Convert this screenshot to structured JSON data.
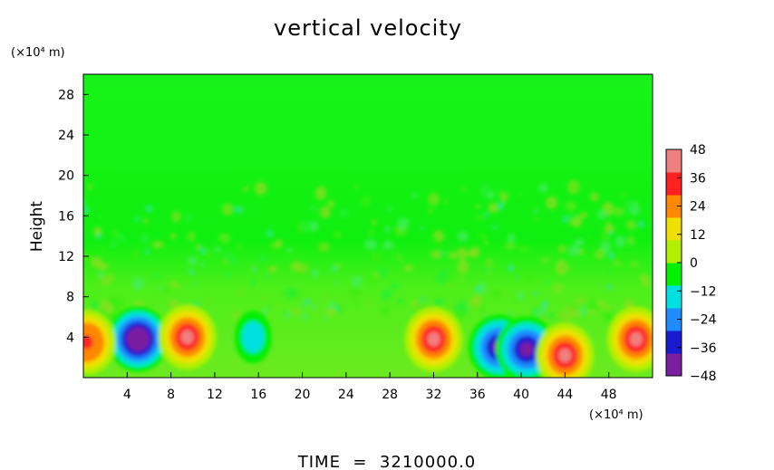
{
  "chart_data": {
    "type": "heatmap",
    "title": "vertical velocity",
    "ylabel": "Height",
    "x_unit_label": "(×10⁴ m)",
    "y_unit_label": "(×10⁴ m)",
    "xlim": [
      0,
      52
    ],
    "ylim": [
      0,
      30
    ],
    "x_ticks": [
      4,
      8,
      12,
      16,
      20,
      24,
      28,
      32,
      36,
      40,
      44,
      48
    ],
    "y_ticks": [
      4,
      8,
      12,
      16,
      20,
      24,
      28
    ],
    "x_tick_labels": [
      "4",
      "8",
      "12",
      "16",
      "20",
      "24",
      "28",
      "32",
      "36",
      "40",
      "44",
      "48"
    ],
    "y_tick_labels": [
      "4",
      "8",
      "12",
      "16",
      "20",
      "24",
      "28"
    ],
    "colorbar": {
      "min": -48,
      "max": 48,
      "ticks": [
        48,
        36,
        24,
        12,
        0,
        -12,
        -24,
        -36,
        -48
      ],
      "tick_labels": [
        "48",
        "36",
        "24",
        "12",
        "0",
        "−12",
        "−24",
        "−36",
        "−48"
      ],
      "colors": [
        "#7a1fa0",
        "#1a1ad0",
        "#1e8cff",
        "#00e0e0",
        "#00f000",
        "#b0f000",
        "#f0e000",
        "#ff8800",
        "#ff2020",
        "#f08080"
      ]
    },
    "features": [
      {
        "x": 5.0,
        "y": 3.8,
        "value": -48,
        "kind": "downdraft"
      },
      {
        "x": 9.5,
        "y": 4.0,
        "value": 44,
        "kind": "updraft"
      },
      {
        "x": 0.3,
        "y": 3.5,
        "value": 36,
        "kind": "updraft"
      },
      {
        "x": 15.5,
        "y": 4.0,
        "value": -18,
        "kind": "downdraft"
      },
      {
        "x": 32.0,
        "y": 3.8,
        "value": 42,
        "kind": "updraft"
      },
      {
        "x": 38.0,
        "y": 3.0,
        "value": -40,
        "kind": "downdraft"
      },
      {
        "x": 40.5,
        "y": 2.8,
        "value": -42,
        "kind": "downdraft"
      },
      {
        "x": 44.0,
        "y": 2.2,
        "value": 40,
        "kind": "updraft"
      },
      {
        "x": 50.5,
        "y": 3.8,
        "value": 40,
        "kind": "updraft"
      }
    ]
  },
  "footer": {
    "time_label": "TIME  =  3210000.0"
  }
}
